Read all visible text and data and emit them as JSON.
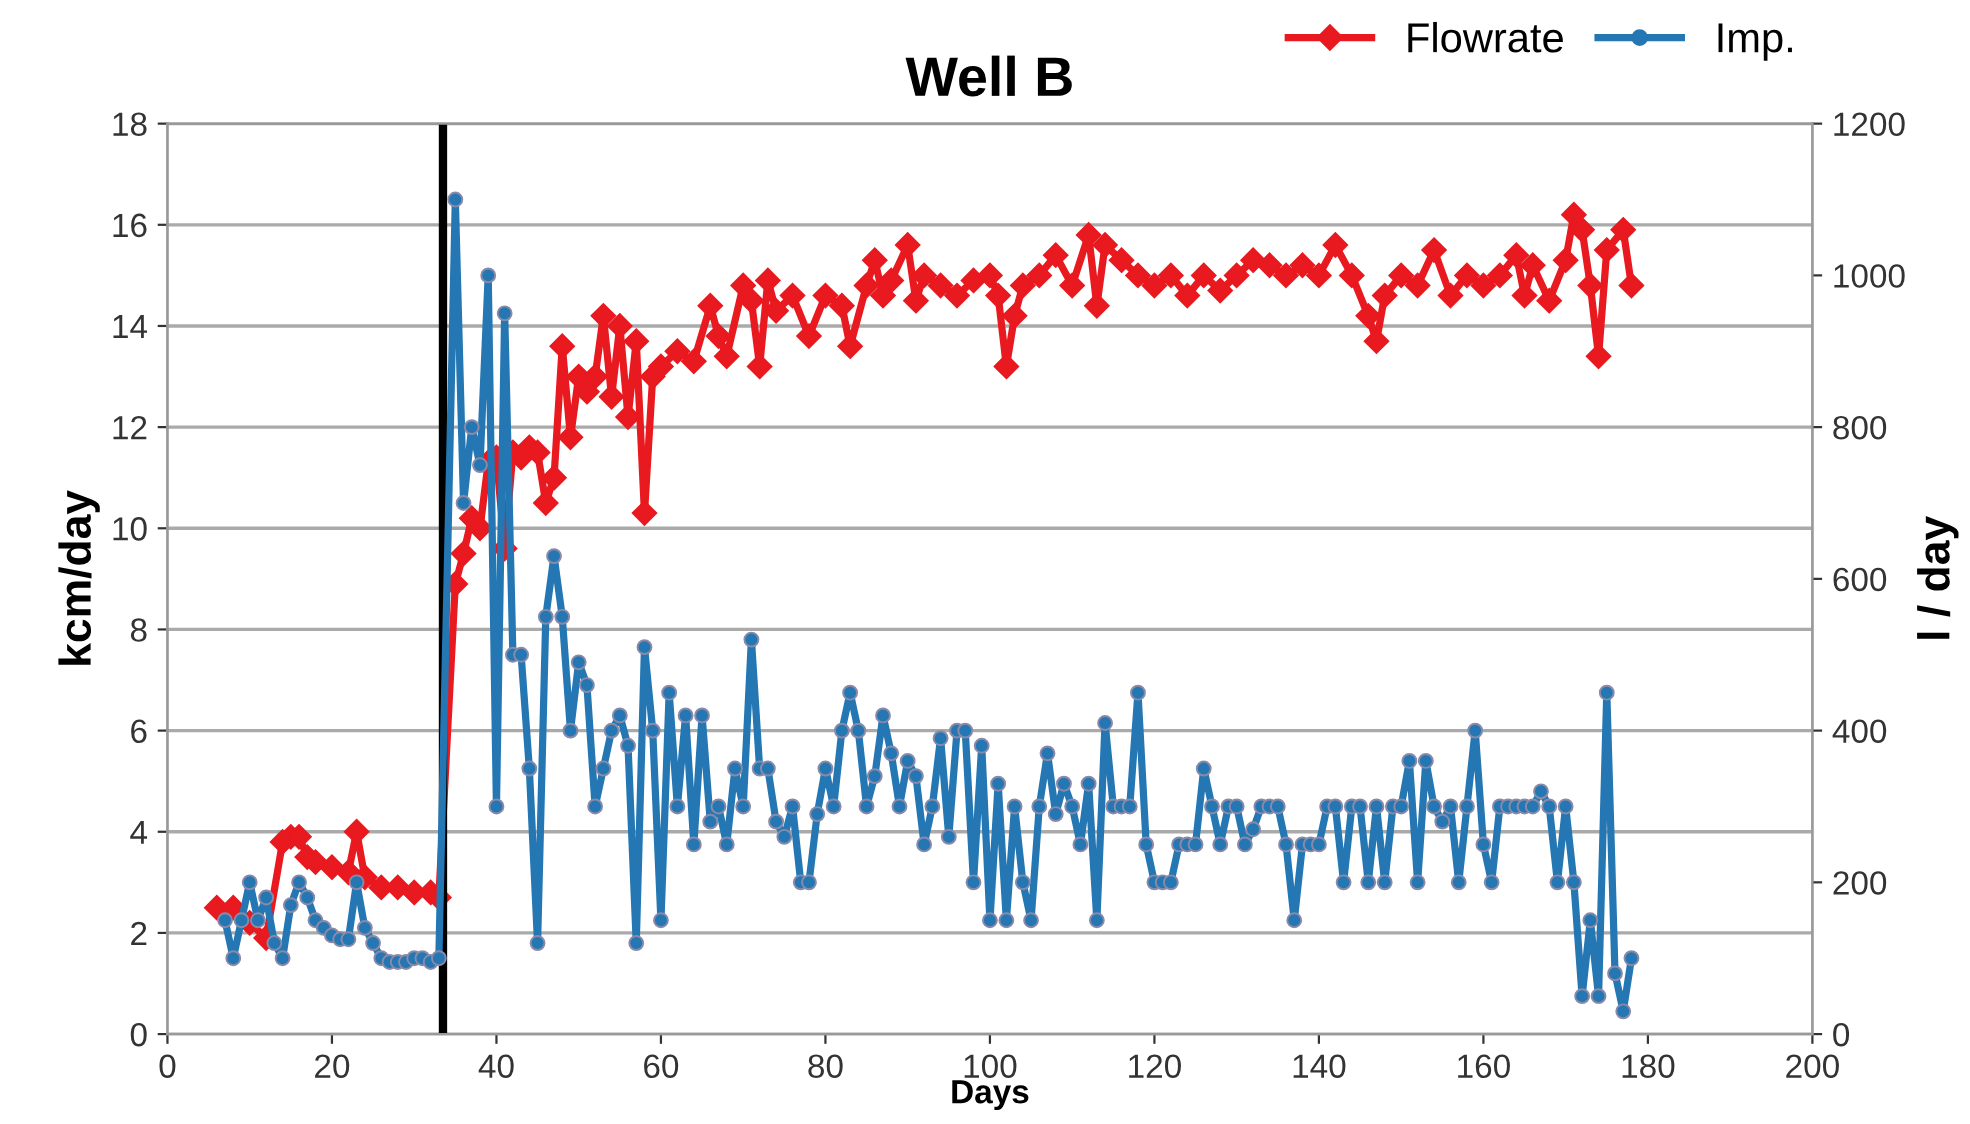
{
  "chart_data": {
    "type": "line",
    "title": "Well B",
    "xlabel": "Days",
    "ylabel": "kcm/day",
    "y2label": "l / day",
    "xlim": [
      0,
      200
    ],
    "xticks": [
      0,
      20,
      40,
      60,
      80,
      100,
      120,
      140,
      160,
      180,
      200
    ],
    "ylim": [
      0,
      18
    ],
    "yticks": [
      0,
      2,
      4,
      6,
      8,
      10,
      12,
      14,
      16,
      18
    ],
    "y2lim": [
      0,
      1200
    ],
    "y2ticks": [
      0,
      200,
      400,
      600,
      800,
      1000,
      1200
    ],
    "grid": "y",
    "legend": "top right",
    "line_style": "solid",
    "ref_lines": [
      {
        "axis": "x",
        "value": 33.5,
        "color": "#000000"
      }
    ],
    "series": [
      {
        "name": "Flowrate",
        "color": "#e8191f",
        "marker": "diamond",
        "x": [
          6,
          8,
          10,
          12,
          14,
          15,
          16,
          17,
          18,
          20,
          22,
          23,
          24,
          26,
          28,
          30,
          32,
          33,
          35,
          36,
          37,
          38,
          39,
          40,
          41,
          42,
          43,
          44,
          45,
          46,
          47,
          48,
          49,
          50,
          51,
          52,
          53,
          54,
          55,
          56,
          57,
          58,
          59,
          60,
          62,
          64,
          66,
          67,
          68,
          70,
          71,
          72,
          73,
          74,
          76,
          78,
          80,
          82,
          83,
          85,
          86,
          87,
          88,
          90,
          91,
          92,
          94,
          96,
          98,
          100,
          101,
          102,
          103,
          104,
          106,
          108,
          110,
          112,
          113,
          114,
          116,
          118,
          120,
          122,
          124,
          126,
          128,
          130,
          132,
          134,
          136,
          138,
          140,
          142,
          144,
          146,
          147,
          148,
          150,
          152,
          154,
          156,
          158,
          160,
          162,
          164,
          165,
          166,
          168,
          170,
          171,
          172,
          173,
          174,
          175,
          177,
          178
        ],
        "values": [
          2.5,
          2.5,
          2.2,
          1.9,
          3.8,
          3.9,
          3.9,
          3.5,
          3.4,
          3.3,
          3.2,
          4.0,
          3.1,
          2.9,
          2.9,
          2.8,
          2.8,
          2.7,
          8.9,
          9.5,
          10.2,
          10.0,
          11.3,
          11.4,
          9.6,
          11.5,
          11.4,
          11.6,
          11.5,
          10.5,
          11.0,
          13.6,
          11.8,
          13.0,
          12.7,
          13.0,
          14.2,
          12.6,
          14.0,
          12.2,
          13.7,
          10.3,
          13.0,
          13.2,
          13.5,
          13.3,
          14.4,
          13.8,
          13.4,
          14.8,
          14.5,
          13.2,
          14.9,
          14.3,
          14.6,
          13.8,
          14.6,
          14.4,
          13.6,
          14.8,
          15.3,
          14.6,
          14.9,
          15.6,
          14.5,
          15.0,
          14.8,
          14.6,
          14.9,
          15.0,
          14.6,
          13.2,
          14.2,
          14.8,
          15.0,
          15.4,
          14.8,
          15.8,
          14.4,
          15.6,
          15.3,
          15.0,
          14.8,
          15.0,
          14.6,
          15.0,
          14.7,
          15.0,
          15.3,
          15.2,
          15.0,
          15.2,
          15.0,
          15.6,
          15.0,
          14.2,
          13.7,
          14.6,
          15.0,
          14.8,
          15.5,
          14.6,
          15.0,
          14.8,
          15.0,
          15.4,
          14.6,
          15.2,
          14.5,
          15.3,
          16.2,
          15.9,
          14.8,
          13.4,
          15.5,
          15.9,
          14.8
        ]
      },
      {
        "name": "Imp.",
        "color": "#2477b3",
        "marker": "circle",
        "axis": "y2",
        "x": [
          7,
          8,
          9,
          10,
          11,
          12,
          13,
          14,
          15,
          16,
          17,
          18,
          19,
          20,
          21,
          22,
          23,
          24,
          25,
          26,
          27,
          28,
          29,
          30,
          31,
          32,
          33,
          35,
          36,
          37,
          38,
          39,
          40,
          41,
          42,
          43,
          44,
          45,
          46,
          47,
          48,
          49,
          50,
          51,
          52,
          53,
          54,
          55,
          56,
          57,
          58,
          59,
          60,
          61,
          62,
          63,
          64,
          65,
          66,
          67,
          68,
          69,
          70,
          71,
          72,
          73,
          74,
          75,
          76,
          77,
          78,
          79,
          80,
          81,
          82,
          83,
          84,
          85,
          86,
          87,
          88,
          89,
          90,
          91,
          92,
          93,
          94,
          95,
          96,
          97,
          98,
          99,
          100,
          101,
          102,
          103,
          104,
          105,
          106,
          107,
          108,
          109,
          110,
          111,
          112,
          113,
          114,
          115,
          116,
          117,
          118,
          119,
          120,
          121,
          122,
          123,
          124,
          125,
          126,
          127,
          128,
          129,
          130,
          131,
          132,
          133,
          134,
          135,
          136,
          137,
          138,
          139,
          140,
          141,
          142,
          143,
          144,
          145,
          146,
          147,
          148,
          149,
          150,
          151,
          152,
          153,
          154,
          155,
          156,
          157,
          158,
          159,
          160,
          161,
          162,
          163,
          164,
          165,
          166,
          167,
          168,
          169,
          170,
          171,
          172,
          173,
          174,
          175,
          176,
          177,
          178
        ],
        "values": [
          150,
          100,
          150,
          200,
          150,
          180,
          120,
          100,
          170,
          200,
          180,
          150,
          140,
          130,
          125,
          125,
          200,
          140,
          120,
          100,
          95,
          95,
          95,
          100,
          100,
          95,
          100,
          1100,
          700,
          800,
          750,
          1000,
          300,
          950,
          500,
          500,
          350,
          120,
          550,
          630,
          550,
          400,
          490,
          460,
          300,
          350,
          400,
          420,
          380,
          120,
          510,
          400,
          150,
          450,
          300,
          420,
          250,
          420,
          280,
          300,
          250,
          350,
          300,
          520,
          350,
          350,
          280,
          260,
          300,
          200,
          200,
          290,
          350,
          300,
          400,
          450,
          400,
          300,
          340,
          420,
          370,
          300,
          360,
          340,
          250,
          300,
          390,
          260,
          400,
          400,
          200,
          380,
          150,
          330,
          150,
          300,
          200,
          150,
          300,
          370,
          290,
          330,
          300,
          250,
          330,
          150,
          410,
          300,
          300,
          300,
          450,
          250,
          200,
          200,
          200,
          250,
          250,
          250,
          350,
          300,
          250,
          300,
          300,
          250,
          270,
          300,
          300,
          300,
          250,
          150,
          250,
          250,
          250,
          300,
          300,
          200,
          300,
          300,
          200,
          300,
          200,
          300,
          300,
          360,
          200,
          360,
          300,
          280,
          300,
          200,
          300,
          400,
          250,
          200,
          300,
          300,
          300,
          300,
          300,
          320,
          300,
          200,
          300,
          200,
          50,
          150,
          50,
          450,
          80,
          30,
          100
        ]
      }
    ]
  }
}
